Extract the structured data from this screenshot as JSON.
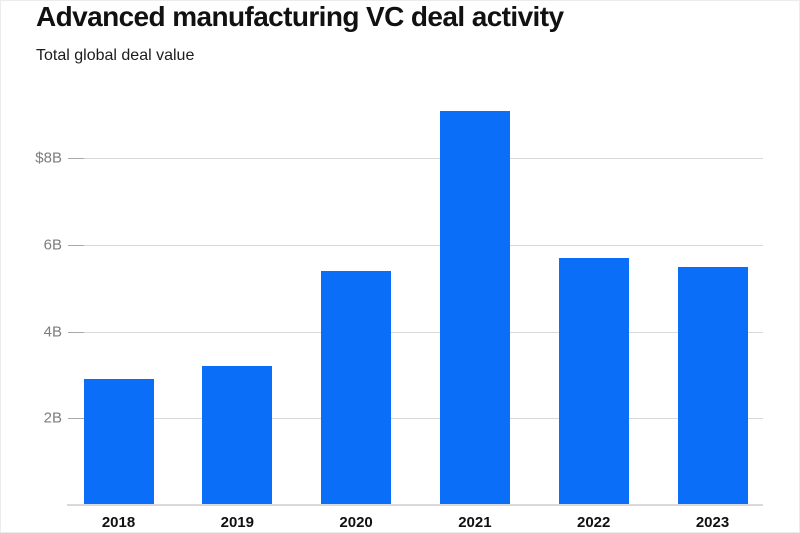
{
  "header": {
    "title": "Advanced manufacturing VC deal activity",
    "subtitle": "Total global deal value"
  },
  "chart_data": {
    "type": "bar",
    "title": "Advanced manufacturing VC deal activity",
    "subtitle": "Total global deal value",
    "categories": [
      "2018",
      "2019",
      "2020",
      "2021",
      "2022",
      "2023"
    ],
    "values": [
      2.9,
      3.2,
      5.4,
      9.1,
      5.7,
      5.5
    ],
    "unit": "$B (USD billions)",
    "xlabel": "",
    "ylabel": "",
    "ylim": [
      0,
      9.6
    ],
    "yticks": [
      {
        "value": 2,
        "label": "2B"
      },
      {
        "value": 4,
        "label": "4B"
      },
      {
        "value": 6,
        "label": "6B"
      },
      {
        "value": 8,
        "label": "$8B"
      }
    ],
    "grid": true,
    "legend": false,
    "colors": {
      "bar": "#0a6ef9",
      "gridline": "#d9d9d9",
      "tick": "#a9a9a9",
      "axis_line": "#d9d9d9",
      "ytick_label": "#7d7d7d",
      "xtick_label": "#111111"
    }
  }
}
